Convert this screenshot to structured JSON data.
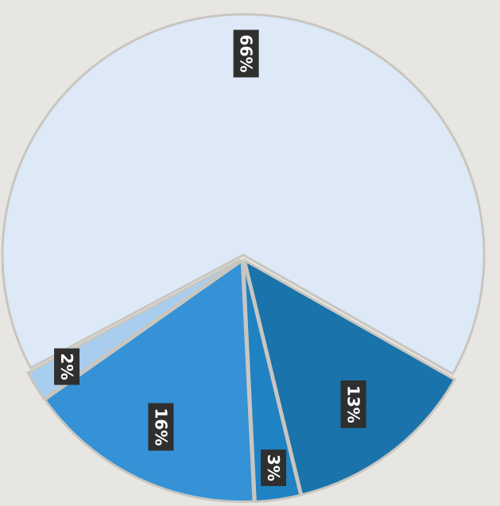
{
  "chart_data": {
    "type": "pie",
    "slices": [
      {
        "label": "66%",
        "value": 66,
        "color": "#dde9f6"
      },
      {
        "label": "13%",
        "value": 13,
        "color": "#1a73aa"
      },
      {
        "label": "3%",
        "value": 3,
        "color": "#1f82c2"
      },
      {
        "label": "16%",
        "value": 16,
        "color": "#3592d6"
      },
      {
        "label": "2%",
        "value": 2,
        "color": "#a8cdef"
      }
    ],
    "legend": "none"
  }
}
